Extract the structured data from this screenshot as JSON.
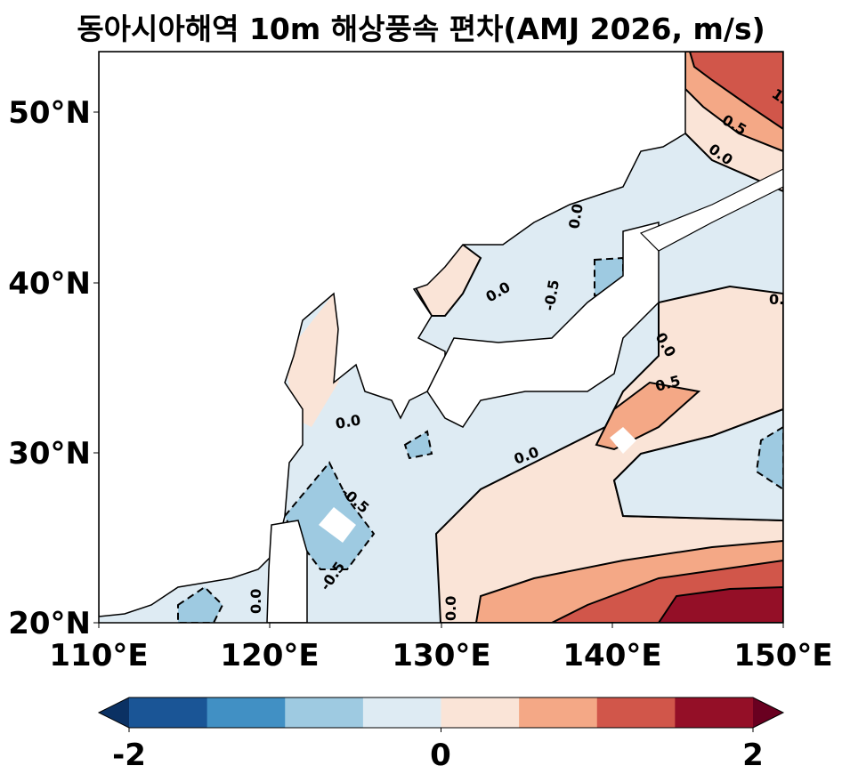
{
  "title": "동아시아해역 10m 해상풍속 편차(AMJ 2026, m/s)",
  "map": {
    "extent_lon": [
      110,
      150
    ],
    "extent_lat": [
      20,
      53.5
    ],
    "x_ticks": [
      "110°E",
      "120°E",
      "130°E",
      "140°E",
      "150°E"
    ],
    "y_ticks": [
      "20°N",
      "30°N",
      "40°N",
      "50°N"
    ],
    "land_masked": true,
    "contour_labels": [
      "1.",
      "0.5",
      "0.0",
      "0.0",
      "-0.5",
      "0.0",
      "0.0",
      "0.5",
      "0.0",
      "0.0",
      "-0.5",
      "-0.5",
      "0.0",
      "0.0",
      "0."
    ]
  },
  "colorbar": {
    "ticks": [
      "-2",
      "0",
      "2"
    ],
    "range": [
      -2,
      2
    ],
    "levels": [
      -2,
      -1.5,
      -1,
      -0.5,
      0,
      0.5,
      1,
      1.5,
      2
    ],
    "extend": "both",
    "colors": [
      "#1a5596",
      "#4190c4",
      "#9ecae1",
      "#deebf3",
      "#fae4d7",
      "#f4a886",
      "#d1564a",
      "#940f27"
    ],
    "under_color": "#0b3163",
    "over_color": "#690020"
  }
}
